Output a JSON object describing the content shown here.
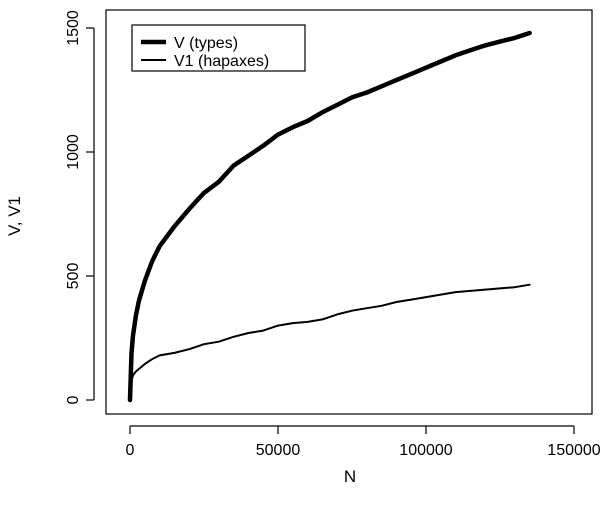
{
  "chart_data": {
    "type": "line",
    "xlabel": "N",
    "ylabel": "V, V1",
    "xlim": [
      0,
      150000
    ],
    "ylim": [
      0,
      1500
    ],
    "x_ticks": [
      0,
      50000,
      100000,
      150000
    ],
    "y_ticks": [
      0,
      500,
      1000,
      1500
    ],
    "x_tick_labels": [
      "0",
      "50000",
      "100000",
      "150000"
    ],
    "y_tick_labels": [
      "0",
      "500",
      "1000",
      "1500"
    ],
    "grid": false,
    "legend": {
      "position": "top-left",
      "entries": [
        {
          "label": "V (types)",
          "line_width": "thick"
        },
        {
          "label": "V1 (hapaxes)",
          "line_width": "thin"
        }
      ]
    },
    "series": [
      {
        "name": "V (types)",
        "color": "#000000",
        "line_width": "thick",
        "x": [
          0,
          500,
          1000,
          2000,
          3000,
          5000,
          7500,
          10000,
          15000,
          20000,
          25000,
          30000,
          35000,
          40000,
          45000,
          50000,
          55000,
          60000,
          65000,
          70000,
          75000,
          80000,
          85000,
          90000,
          95000,
          100000,
          105000,
          110000,
          115000,
          120000,
          125000,
          130000,
          135000
        ],
        "values": [
          0,
          190,
          260,
          340,
          400,
          480,
          560,
          620,
          700,
          770,
          835,
          880,
          945,
          985,
          1025,
          1070,
          1100,
          1125,
          1160,
          1190,
          1220,
          1240,
          1265,
          1290,
          1315,
          1340,
          1365,
          1390,
          1410,
          1430,
          1445,
          1460,
          1480
        ]
      },
      {
        "name": "V1 (hapaxes)",
        "color": "#000000",
        "line_width": "thin",
        "x": [
          0,
          500,
          1000,
          2000,
          3000,
          5000,
          7500,
          10000,
          15000,
          20000,
          25000,
          30000,
          35000,
          40000,
          45000,
          50000,
          55000,
          60000,
          65000,
          70000,
          75000,
          80000,
          85000,
          90000,
          95000,
          100000,
          105000,
          110000,
          115000,
          120000,
          125000,
          130000,
          135000
        ],
        "values": [
          0,
          75,
          100,
          115,
          125,
          145,
          165,
          180,
          190,
          205,
          225,
          235,
          255,
          270,
          280,
          300,
          310,
          315,
          325,
          345,
          360,
          370,
          380,
          395,
          405,
          415,
          425,
          435,
          440,
          445,
          450,
          455,
          465
        ]
      }
    ]
  }
}
